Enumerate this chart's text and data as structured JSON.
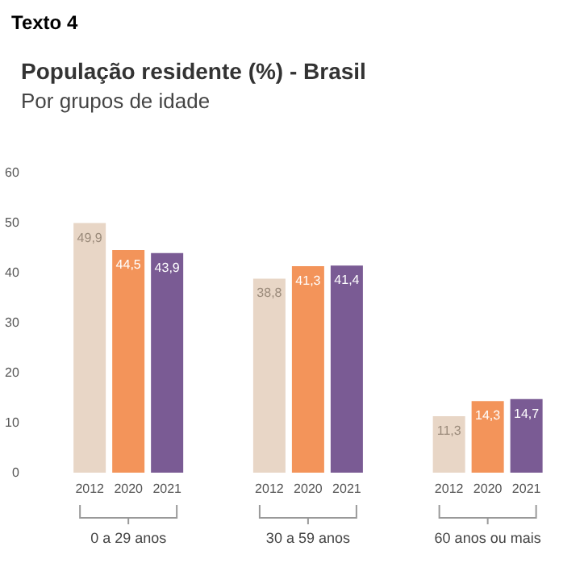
{
  "chart_data": {
    "type": "bar",
    "title": "População residente (%) - Brasil",
    "subtitle": "Por grupos de idade",
    "annotations": [
      "Texto 4"
    ],
    "categories": [
      "0 a 29 anos",
      "30 a 59 anos",
      "60 anos ou mais"
    ],
    "series": [
      {
        "name": "2012",
        "color": "#e8d6c6",
        "values": [
          49.9,
          38.8,
          11.3
        ],
        "value_labels": [
          "49,9",
          "38,8",
          "11,3"
        ]
      },
      {
        "name": "2020",
        "color": "#f3945a",
        "values": [
          44.5,
          41.3,
          14.3
        ],
        "value_labels": [
          "44,5",
          "41,3",
          "14,3"
        ]
      },
      {
        "name": "2021",
        "color": "#7a5b94",
        "values": [
          43.9,
          41.4,
          14.7
        ],
        "value_labels": [
          "43,9",
          "41,4",
          "14,7"
        ]
      }
    ],
    "ylim": [
      0,
      60
    ],
    "yticks": [
      0,
      10,
      20,
      30,
      40,
      50,
      60
    ],
    "grid": false,
    "legend": false
  }
}
